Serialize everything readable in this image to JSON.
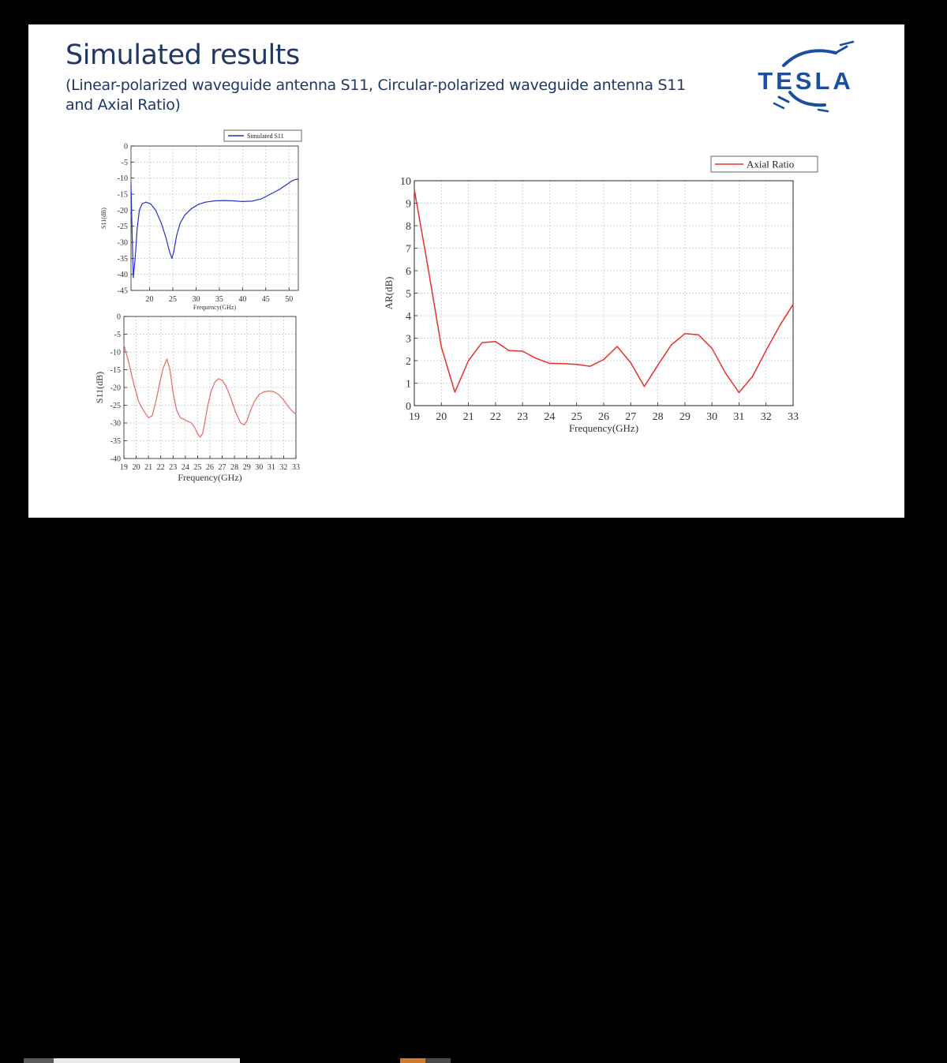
{
  "slide": {
    "title": "Simulated results",
    "subtitle": "(Linear-polarized waveguide antenna S11, Circular-polarized waveguide antenna S11 and Axial Ratio)",
    "logo_text": "TESLA",
    "colors": {
      "title": "#1f3864",
      "logo": "#1a4fa0"
    }
  },
  "chart_data": [
    {
      "type": "line",
      "xlabel": "Frequency(GHz)",
      "ylabel": "S11(dB)",
      "xlim": [
        16,
        52
      ],
      "ylim": [
        -45,
        0
      ],
      "xticks": [
        20,
        25,
        30,
        35,
        40,
        45,
        50
      ],
      "yticks": [
        0,
        -5,
        -10,
        -15,
        -20,
        -25,
        -30,
        -35,
        -40,
        -45
      ],
      "grid": true,
      "legend": "top-right",
      "series": [
        {
          "name": "Simulated S11",
          "color": "#2434c8",
          "x": [
            16,
            16.2,
            16.5,
            16.9,
            17.3,
            17.8,
            18.4,
            19.2,
            20.2,
            21.3,
            22.5,
            23.5,
            24.3,
            24.8,
            25.2,
            25.8,
            26.6,
            27.6,
            29,
            30.5,
            32,
            34,
            36,
            38,
            40,
            42,
            44,
            46,
            48,
            49.5,
            50.5,
            51.2,
            52
          ],
          "y": [
            -12,
            -25,
            -41,
            -35,
            -26,
            -20,
            -18,
            -17.5,
            -18,
            -20,
            -24,
            -28.5,
            -33,
            -35,
            -33,
            -28,
            -24,
            -21.5,
            -19.5,
            -18.2,
            -17.5,
            -17.1,
            -17,
            -17.1,
            -17.3,
            -17.2,
            -16.5,
            -15,
            -13.5,
            -12,
            -11,
            -10.5,
            -10.3
          ]
        }
      ]
    },
    {
      "type": "line",
      "xlabel": "Frequency(GHz)",
      "ylabel": "S11(dB)",
      "xlim": [
        19,
        33
      ],
      "ylim": [
        -40,
        0
      ],
      "xticks": [
        19,
        20,
        21,
        22,
        23,
        24,
        25,
        26,
        27,
        28,
        29,
        30,
        31,
        32,
        33
      ],
      "yticks": [
        0,
        -5,
        -10,
        -15,
        -20,
        -25,
        -30,
        -35,
        -40
      ],
      "grid": true,
      "series": [
        {
          "color": "#e06a66",
          "x": [
            19,
            19.4,
            19.8,
            20.2,
            20.6,
            21,
            21.3,
            21.6,
            21.9,
            22.2,
            22.5,
            22.75,
            23,
            23.3,
            23.6,
            23.9,
            24.2,
            24.5,
            24.8,
            25,
            25.2,
            25.4,
            25.6,
            25.8,
            26.1,
            26.4,
            26.7,
            27,
            27.3,
            27.7,
            28.1,
            28.5,
            28.8,
            29,
            29.3,
            29.6,
            30,
            30.4,
            30.8,
            31.2,
            31.6,
            32,
            32.4,
            32.8,
            33
          ],
          "y": [
            -8,
            -13,
            -19,
            -24,
            -26.5,
            -28.5,
            -28,
            -24,
            -19,
            -14.5,
            -12,
            -15,
            -21.5,
            -26.5,
            -28.5,
            -29,
            -29.5,
            -30,
            -31.5,
            -33,
            -34,
            -33,
            -29.5,
            -25.5,
            -21,
            -18.5,
            -17.5,
            -18,
            -19.5,
            -23,
            -27,
            -30,
            -30.5,
            -29.5,
            -26.5,
            -24,
            -22,
            -21.2,
            -21,
            -21.2,
            -22,
            -23.5,
            -25.5,
            -27,
            -27.5
          ]
        }
      ]
    },
    {
      "type": "line",
      "xlabel": "Frequency(GHz)",
      "ylabel": "AR(dB)",
      "xlim": [
        19,
        33
      ],
      "ylim": [
        0,
        10
      ],
      "xticks": [
        19,
        20,
        21,
        22,
        23,
        24,
        25,
        26,
        27,
        28,
        29,
        30,
        31,
        32,
        33
      ],
      "yticks": [
        0,
        1,
        2,
        3,
        4,
        5,
        6,
        7,
        8,
        9,
        10
      ],
      "grid": true,
      "legend": "top-right",
      "series": [
        {
          "name": "Axial Ratio",
          "color": "#e8302a",
          "x": [
            19,
            19.5,
            20,
            20.5,
            21,
            21.5,
            22,
            22.5,
            23,
            23.5,
            24,
            24.5,
            25,
            25.5,
            26,
            26.5,
            27,
            27.5,
            28,
            28.5,
            29,
            29.5,
            30,
            30.5,
            31,
            31.5,
            32,
            32.5,
            33
          ],
          "y": [
            9.6,
            6.2,
            2.6,
            0.6,
            2,
            2.8,
            2.85,
            2.45,
            2.42,
            2.1,
            1.88,
            1.87,
            1.83,
            1.75,
            2.05,
            2.63,
            1.9,
            0.85,
            1.8,
            2.7,
            3.2,
            3.15,
            2.55,
            1.45,
            0.58,
            1.3,
            2.45,
            3.55,
            4.5
          ]
        }
      ]
    }
  ]
}
